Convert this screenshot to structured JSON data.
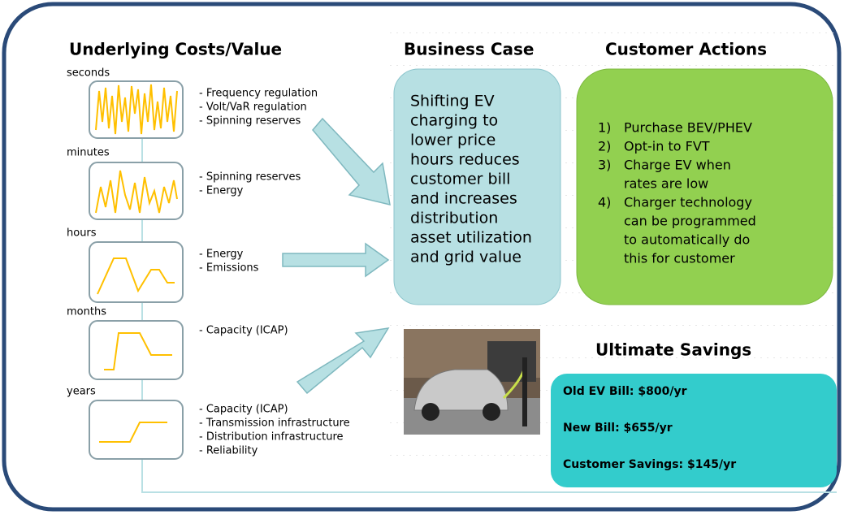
{
  "underlying": {
    "title": "Underlying Costs/Value",
    "timescales": [
      {
        "label": "seconds",
        "items": [
          "- Frequency regulation",
          "- Volt/VaR regulation",
          "- Spinning reserves"
        ]
      },
      {
        "label": "minutes",
        "items": [
          "- Spinning reserves",
          "- Energy"
        ]
      },
      {
        "label": "hours",
        "items": [
          "- Energy",
          "- Emissions"
        ]
      },
      {
        "label": "months",
        "items": [
          "- Capacity (ICAP)"
        ]
      },
      {
        "label": "years",
        "items": [
          "- Capacity (ICAP)",
          "- Transmission infrastructure",
          "- Distribution infrastructure",
          "- Reliability"
        ]
      }
    ]
  },
  "business_case": {
    "title": "Business Case",
    "lines": [
      "Shifting EV",
      "charging to",
      "lower price",
      "hours reduces",
      "customer bill",
      "and increases",
      "distribution",
      "asset utilization",
      "and grid value"
    ]
  },
  "customer_actions": {
    "title": "Customer Actions",
    "items": [
      {
        "number": "1)",
        "lines": [
          "Purchase BEV/PHEV"
        ]
      },
      {
        "number": "2)",
        "lines": [
          "Opt-in to FVT"
        ]
      },
      {
        "number": "3)",
        "lines": [
          "Charge EV when",
          "rates are low"
        ]
      },
      {
        "number": "4)",
        "lines": [
          "Charger technology",
          "can be programmed",
          "to automatically do",
          "this for customer"
        ]
      }
    ]
  },
  "ultimate_savings": {
    "title": "Ultimate Savings",
    "lines": [
      "Old EV Bill: $800/yr",
      "New Bill: $655/yr",
      "Customer Savings: $145/yr"
    ]
  }
}
